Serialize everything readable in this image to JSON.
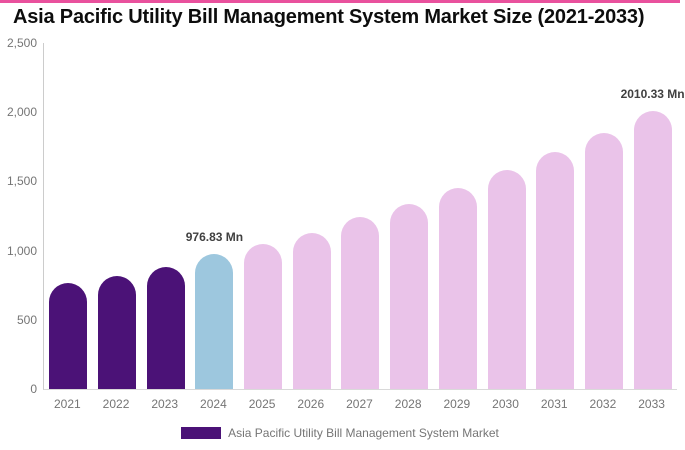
{
  "page": {
    "accent_color": "#e9519d",
    "background": "#ffffff"
  },
  "chart_data": {
    "type": "bar",
    "title": "Asia Pacific Utility Bill Management System Market Size (2021-2033)",
    "unit": "Mn",
    "categories": [
      "2021",
      "2022",
      "2023",
      "2024",
      "2025",
      "2026",
      "2027",
      "2028",
      "2029",
      "2030",
      "2031",
      "2032",
      "2033"
    ],
    "series": [
      {
        "name": "Asia Pacific Utility Bill Management System Market",
        "values": [
          765,
          815,
          880,
          976.83,
          1045,
          1125,
          1240,
          1335,
          1450,
          1580,
          1715,
          1850,
          2010.33
        ]
      }
    ],
    "bar_roles": [
      "historical",
      "historical",
      "historical",
      "current",
      "forecast",
      "forecast",
      "forecast",
      "forecast",
      "forecast",
      "forecast",
      "forecast",
      "forecast",
      "forecast"
    ],
    "colors": {
      "historical": "#4b1277",
      "current": "#9dc7de",
      "forecast": "#eac3e9"
    },
    "annotations": [
      {
        "category": "2024",
        "text": "976.83 Mn"
      },
      {
        "category": "2033",
        "text": "2010.33 Mn"
      }
    ],
    "y_axis": {
      "ticks": [
        0,
        500,
        1000,
        1500,
        2000,
        2500
      ],
      "tick_labels": [
        "0",
        "500",
        "1,000",
        "1,500",
        "2,000",
        "2,500"
      ],
      "ylim": [
        0,
        2500
      ]
    },
    "grid": false,
    "axis_line_color": "#cccccc",
    "axis_text_color": "#757575",
    "legend": {
      "label": "Asia Pacific Utility Bill Management System Market",
      "swatch_color": "#4b1277",
      "position": "bottom-center"
    }
  }
}
